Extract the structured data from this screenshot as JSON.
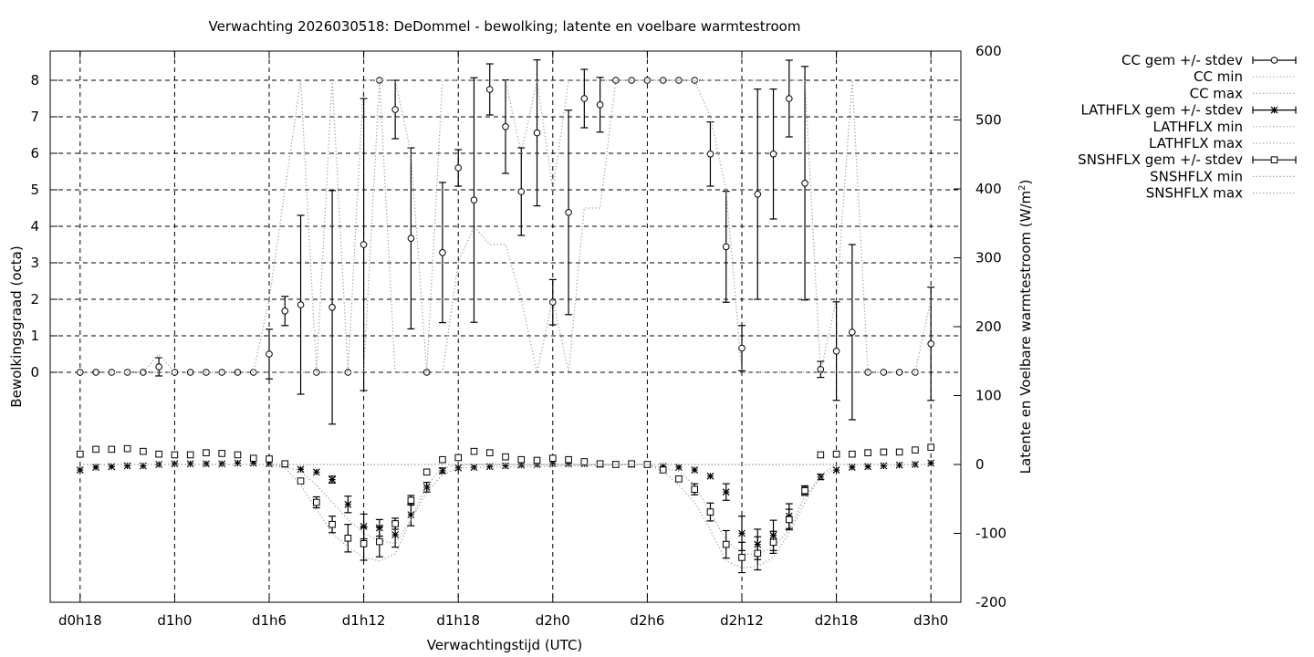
{
  "chart_data": {
    "type": "line",
    "title": "Verwachting 2026030518: DeDommel - bewolking; latente en voelbare warmtestroom",
    "xlabel": "Verwachtingstijd (UTC)",
    "ylabel": "Bewolkingsgraad (octa)",
    "y2label": "Latente en Voelbare warmtestroom (W/m",
    "y2label_sup": "2",
    "y2label_end": ")",
    "x_ticks": [
      {
        "x": 18,
        "label": "d0h18"
      },
      {
        "x": 24,
        "label": "d1h0"
      },
      {
        "x": 30,
        "label": "d1h6"
      },
      {
        "x": 36,
        "label": "d1h12"
      },
      {
        "x": 42,
        "label": "d1h18"
      },
      {
        "x": 48,
        "label": "d2h0"
      },
      {
        "x": 54,
        "label": "d2h6"
      },
      {
        "x": 60,
        "label": "d2h12"
      },
      {
        "x": 66,
        "label": "d2h18"
      },
      {
        "x": 72,
        "label": "d3h0"
      }
    ],
    "xlim": [
      16.1,
      73.9
    ],
    "y_ticks": [
      0,
      1,
      2,
      3,
      4,
      5,
      6,
      7,
      8
    ],
    "ylim": [
      -6.3,
      8.8
    ],
    "y2_ticks": [
      -200,
      -100,
      0,
      100,
      200,
      300,
      400,
      500,
      600
    ],
    "y2lim": [
      -200,
      600
    ],
    "grid": true,
    "legend_position": "outside-right",
    "series": [
      {
        "name": "CC gem +/- stdev",
        "axis": "y",
        "marker": "circle",
        "errorbars": true,
        "style": "points",
        "x": [
          18,
          19,
          20,
          21,
          22,
          23,
          24,
          25,
          26,
          27,
          28,
          29,
          30,
          31,
          32,
          33,
          34,
          35,
          36,
          37,
          38,
          39,
          40,
          41,
          42,
          43,
          44,
          45,
          46,
          47,
          48,
          49,
          50,
          51,
          52,
          53,
          54,
          55,
          56,
          57,
          58,
          59,
          60,
          61,
          62,
          63,
          64,
          65,
          66,
          67,
          68,
          69,
          70,
          71,
          72
        ],
        "values": [
          0,
          0,
          0,
          0,
          0,
          0.15,
          0,
          0,
          0,
          0,
          0,
          0,
          0.5,
          1.68,
          1.85,
          0,
          1.78,
          0,
          3.5,
          8.0,
          7.2,
          3.67,
          0,
          3.28,
          5.6,
          4.72,
          7.75,
          6.73,
          4.95,
          6.56,
          1.92,
          4.38,
          7.5,
          7.33,
          8.0,
          8.0,
          8.0,
          8.0,
          8.0,
          8.0,
          5.98,
          3.44,
          0.66,
          4.88,
          5.98,
          7.5,
          5.18,
          0.08,
          0.58,
          1.1,
          0,
          0,
          0,
          0,
          0.78
        ],
        "err": [
          0,
          0,
          0,
          0,
          0,
          0.25,
          0,
          0,
          0,
          0,
          0,
          0,
          0.68,
          0.4,
          2.45,
          0,
          3.2,
          0,
          4.0,
          0,
          0.8,
          2.48,
          0,
          1.92,
          0.5,
          3.35,
          0.7,
          1.28,
          1.2,
          2.0,
          0.62,
          2.8,
          0.8,
          0.75,
          0,
          0,
          0,
          0,
          0,
          0,
          0.88,
          1.52,
          0.62,
          2.88,
          1.78,
          1.05,
          3.2,
          0.22,
          1.35,
          2.4,
          0,
          0,
          0,
          0,
          1.55
        ]
      },
      {
        "name": "CC min",
        "axis": "y",
        "style": "dotted",
        "x": [
          18,
          19,
          20,
          21,
          22,
          23,
          24,
          25,
          26,
          27,
          28,
          29,
          30,
          31,
          32,
          33,
          34,
          35,
          36,
          37,
          38,
          39,
          40,
          41,
          42,
          43,
          44,
          45,
          46,
          47,
          48,
          49,
          50,
          51,
          52,
          53,
          54,
          55,
          56,
          57,
          58,
          59,
          60,
          61,
          62,
          63,
          64,
          65,
          66,
          67,
          68,
          69,
          70,
          71,
          72
        ],
        "values": [
          0,
          0,
          0,
          0,
          0,
          0,
          0,
          0,
          0,
          0,
          0,
          0,
          0,
          0,
          0,
          0,
          0,
          0,
          0,
          8,
          0,
          0,
          0,
          0,
          3,
          4,
          3.5,
          3.5,
          2,
          0,
          2,
          0,
          4.5,
          4.5,
          8,
          8,
          8,
          8,
          8,
          8,
          7,
          5,
          0,
          0,
          0,
          0,
          0,
          0,
          0,
          0,
          0,
          0,
          0,
          0,
          0
        ]
      },
      {
        "name": "CC max",
        "axis": "y",
        "style": "dotted",
        "x": [
          18,
          19,
          20,
          21,
          22,
          23,
          24,
          25,
          26,
          27,
          28,
          29,
          30,
          31,
          32,
          33,
          34,
          35,
          36,
          37,
          38,
          39,
          40,
          41,
          42,
          43,
          44,
          45,
          46,
          47,
          48,
          49,
          50,
          51,
          52,
          53,
          54,
          55,
          56,
          57,
          58,
          59,
          60,
          61,
          62,
          63,
          64,
          65,
          66,
          67,
          68,
          69,
          70,
          71,
          72
        ],
        "values": [
          0,
          0,
          0,
          0,
          0,
          0.5,
          0,
          0,
          0,
          0,
          0,
          0,
          2,
          5,
          8,
          0,
          8,
          0,
          8,
          8,
          8,
          6,
          0,
          8,
          8,
          8,
          8,
          8,
          6,
          8,
          5,
          8,
          8,
          8,
          8,
          8,
          8,
          8,
          8,
          8,
          8,
          8,
          8,
          8,
          8,
          8,
          8,
          0,
          2,
          8,
          0,
          0,
          0,
          0,
          2
        ]
      },
      {
        "name": "LATHFLX gem +/- stdev",
        "axis": "y2",
        "marker": "star",
        "errorbars": true,
        "style": "points",
        "x": [
          18,
          19,
          20,
          21,
          22,
          23,
          24,
          25,
          26,
          27,
          28,
          29,
          30,
          31,
          32,
          33,
          34,
          35,
          36,
          37,
          38,
          39,
          40,
          41,
          42,
          43,
          44,
          45,
          46,
          47,
          48,
          49,
          50,
          51,
          52,
          53,
          54,
          55,
          56,
          57,
          58,
          59,
          60,
          61,
          62,
          63,
          64,
          65,
          66,
          67,
          68,
          69,
          70,
          71,
          72
        ],
        "values": [
          -8,
          -4,
          -3,
          -2,
          -2,
          0,
          1,
          1,
          1,
          1,
          2,
          2,
          1,
          0,
          -7,
          -11,
          -22,
          -58,
          -90,
          -92,
          -102,
          -73,
          -33,
          -9,
          -5,
          -4,
          -3,
          -2,
          -1,
          0,
          1,
          1,
          1,
          0,
          0,
          0,
          0,
          -3,
          -4,
          -8,
          -17,
          -40,
          -100,
          -116,
          -103,
          -75,
          -38,
          -18,
          -8,
          -4,
          -3,
          -2,
          -1,
          0,
          2
        ],
        "err": [
          0,
          0,
          0,
          0,
          0,
          0,
          0,
          0,
          0,
          0,
          0,
          0,
          0,
          0,
          0,
          0,
          5,
          12,
          18,
          12,
          18,
          16,
          7,
          4,
          0,
          0,
          0,
          0,
          0,
          0,
          0,
          0,
          0,
          0,
          0,
          0,
          0,
          0,
          0,
          0,
          0,
          12,
          25,
          22,
          22,
          18,
          7,
          4,
          0,
          0,
          0,
          0,
          0,
          0,
          0
        ]
      },
      {
        "name": "LATHFLX min",
        "axis": "y2",
        "style": "dotted",
        "x": [
          30,
          31,
          32,
          33,
          34,
          35,
          36,
          37,
          38,
          39,
          40,
          41,
          42,
          54,
          55,
          56,
          57,
          58,
          59,
          60,
          61,
          62,
          63,
          64,
          65,
          66
        ],
        "values": [
          0,
          -3,
          -10,
          -30,
          -55,
          -80,
          -100,
          -110,
          -115,
          -80,
          -40,
          -15,
          -5,
          0,
          -5,
          -10,
          -30,
          -70,
          -110,
          -130,
          -130,
          -120,
          -95,
          -45,
          -20,
          -5
        ]
      },
      {
        "name": "LATHFLX max",
        "axis": "y2",
        "style": "dotted",
        "x": [
          18,
          72
        ],
        "values": [
          0,
          0
        ]
      },
      {
        "name": "SNSHFLX gem +/- stdev",
        "axis": "y2",
        "marker": "square",
        "errorbars": true,
        "style": "points",
        "x": [
          18,
          19,
          20,
          21,
          22,
          23,
          24,
          25,
          26,
          27,
          28,
          29,
          30,
          31,
          32,
          33,
          34,
          35,
          36,
          37,
          38,
          39,
          40,
          41,
          42,
          43,
          44,
          45,
          46,
          47,
          48,
          49,
          50,
          51,
          52,
          53,
          54,
          55,
          56,
          57,
          58,
          59,
          60,
          61,
          62,
          63,
          64,
          65,
          66,
          67,
          68,
          69,
          70,
          71,
          72
        ],
        "values": [
          15,
          22,
          22,
          23,
          19,
          15,
          14,
          14,
          17,
          16,
          14,
          9,
          8,
          1,
          -24,
          -55,
          -87,
          -107,
          -115,
          -112,
          -86,
          -52,
          -11,
          7,
          10,
          19,
          17,
          11,
          7,
          6,
          9,
          7,
          4,
          1,
          0,
          1,
          0,
          -8,
          -21,
          -36,
          -69,
          -116,
          -135,
          -129,
          -113,
          -80,
          -38,
          14,
          15,
          15,
          17,
          18,
          18,
          21,
          25
        ],
        "err": [
          0,
          0,
          0,
          0,
          0,
          0,
          0,
          0,
          0,
          0,
          0,
          0,
          0,
          0,
          0,
          8,
          12,
          20,
          24,
          22,
          8,
          7,
          0,
          0,
          0,
          0,
          0,
          0,
          0,
          0,
          0,
          0,
          0,
          0,
          0,
          0,
          0,
          0,
          0,
          8,
          13,
          20,
          22,
          24,
          16,
          15,
          5,
          0,
          0,
          0,
          0,
          0,
          0,
          0,
          0
        ]
      },
      {
        "name": "SNSHFLX min",
        "axis": "y2",
        "style": "dotted",
        "x": [
          30,
          31,
          32,
          33,
          34,
          35,
          36,
          37,
          38,
          39,
          40,
          41,
          42,
          54,
          55,
          56,
          57,
          58,
          59,
          60,
          61,
          62,
          63,
          64,
          65,
          66
        ],
        "values": [
          0,
          -5,
          -30,
          -65,
          -100,
          -120,
          -135,
          -140,
          -130,
          -80,
          -30,
          -5,
          0,
          0,
          -10,
          -30,
          -55,
          -95,
          -140,
          -150,
          -148,
          -135,
          -100,
          -55,
          -15,
          0
        ]
      },
      {
        "name": "SNSHFLX max",
        "axis": "y2",
        "style": "dotted",
        "x": [
          18,
          72
        ],
        "values": [
          0,
          0
        ]
      }
    ]
  }
}
